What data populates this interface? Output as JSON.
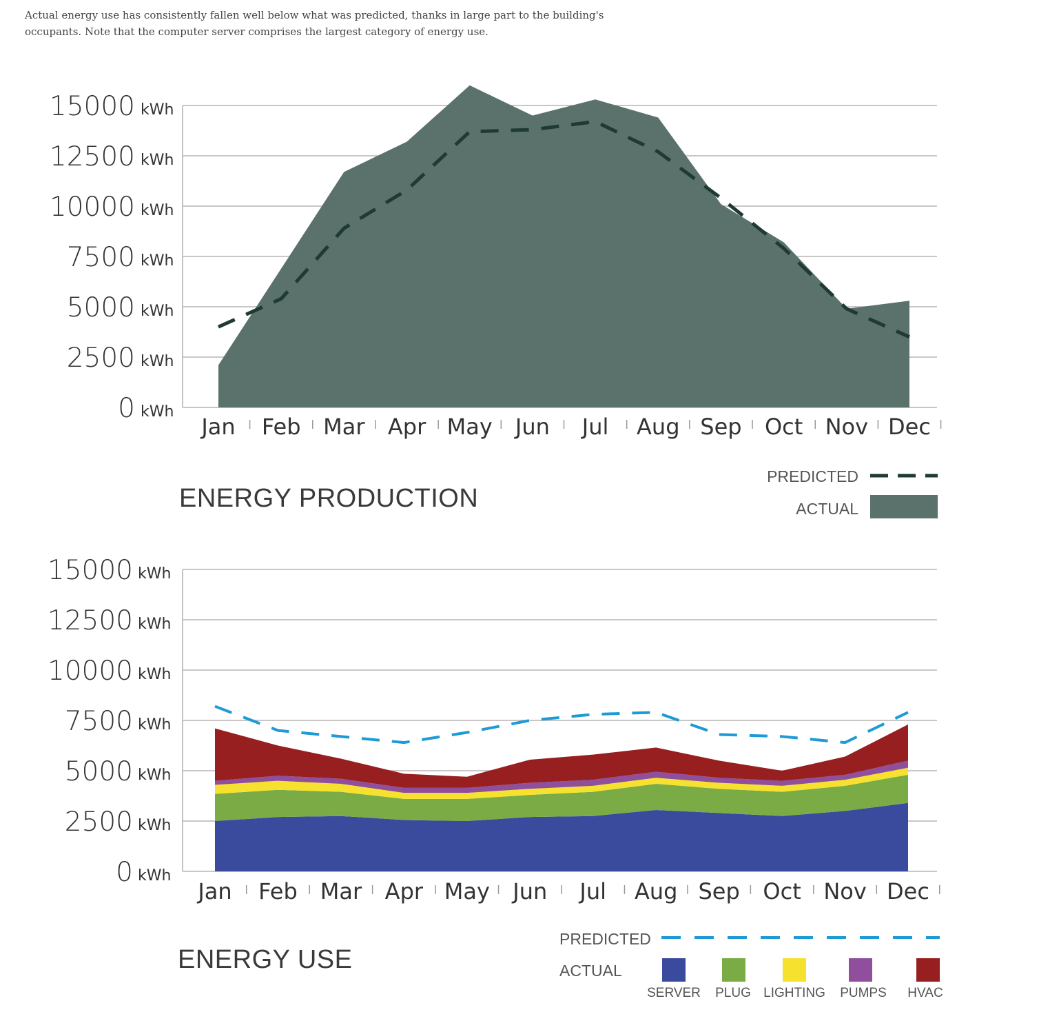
{
  "caption": "Actual energy use has consistently fallen well below what was predicted, thanks in large part to the building's occupants. Note that the computer server comprises the largest category of energy use.",
  "colors": {
    "production_actual": "#5a716c",
    "production_predicted": "#1f3a35",
    "use_predicted": "#1e9ad6",
    "server": "#3a4a9c",
    "plug": "#7aab45",
    "lighting": "#f7e12f",
    "pumps": "#8f4f9c",
    "hvac": "#981f1f",
    "grid": "#b8b3b3"
  },
  "chart_data": [
    {
      "type": "area",
      "title": "ENERGY PRODUCTION",
      "categories": [
        "Jan",
        "Feb",
        "Mar",
        "Apr",
        "May",
        "Jun",
        "Jul",
        "Aug",
        "Sep",
        "Oct",
        "Nov",
        "Dec"
      ],
      "y_unit": "kWh",
      "y_ticks": [
        "0",
        "2500",
        "5000",
        "7500",
        "10000",
        "12500",
        "15000"
      ],
      "ylim": [
        0,
        15000
      ],
      "grid": true,
      "legend_position": "bottom-right",
      "series": [
        {
          "name": "PREDICTED",
          "style": "dashed-line",
          "values": [
            4000,
            5400,
            8900,
            10800,
            13700,
            13800,
            14200,
            12700,
            10400,
            7900,
            4900,
            3500
          ]
        },
        {
          "name": "ACTUAL",
          "style": "area",
          "values": [
            2100,
            6900,
            11700,
            13200,
            16000,
            14500,
            15300,
            14400,
            10100,
            8200,
            4900,
            5300
          ]
        }
      ]
    },
    {
      "type": "area",
      "title": "ENERGY USE",
      "categories": [
        "Jan",
        "Feb",
        "Mar",
        "Apr",
        "May",
        "Jun",
        "Jul",
        "Aug",
        "Sep",
        "Oct",
        "Nov",
        "Dec"
      ],
      "y_unit": "kWh",
      "y_ticks": [
        "0",
        "2500",
        "5000",
        "7500",
        "10000",
        "12500",
        "15000"
      ],
      "ylim": [
        0,
        15000
      ],
      "grid": true,
      "stacked": true,
      "legend_position": "bottom-right",
      "predicted": {
        "name": "PREDICTED",
        "values": [
          8200,
          7000,
          6700,
          6400,
          6900,
          7500,
          7800,
          7900,
          6800,
          6700,
          6400,
          7900
        ]
      },
      "actual_label": "ACTUAL",
      "series": [
        {
          "name": "SERVER",
          "values": [
            2500,
            2700,
            2750,
            2550,
            2500,
            2700,
            2750,
            3050,
            2900,
            2750,
            3000,
            3400
          ]
        },
        {
          "name": "PLUG",
          "values": [
            1350,
            1350,
            1200,
            1050,
            1100,
            1100,
            1200,
            1300,
            1200,
            1200,
            1250,
            1400
          ]
        },
        {
          "name": "LIGHTING",
          "values": [
            450,
            450,
            400,
            300,
            300,
            300,
            300,
            300,
            300,
            300,
            300,
            350
          ]
        },
        {
          "name": "PUMPS",
          "values": [
            200,
            250,
            250,
            250,
            250,
            300,
            300,
            300,
            250,
            250,
            250,
            350
          ]
        },
        {
          "name": "HVAC",
          "values": [
            2600,
            1500,
            1000,
            700,
            550,
            1150,
            1250,
            1200,
            850,
            500,
            900,
            1800
          ]
        }
      ]
    }
  ]
}
